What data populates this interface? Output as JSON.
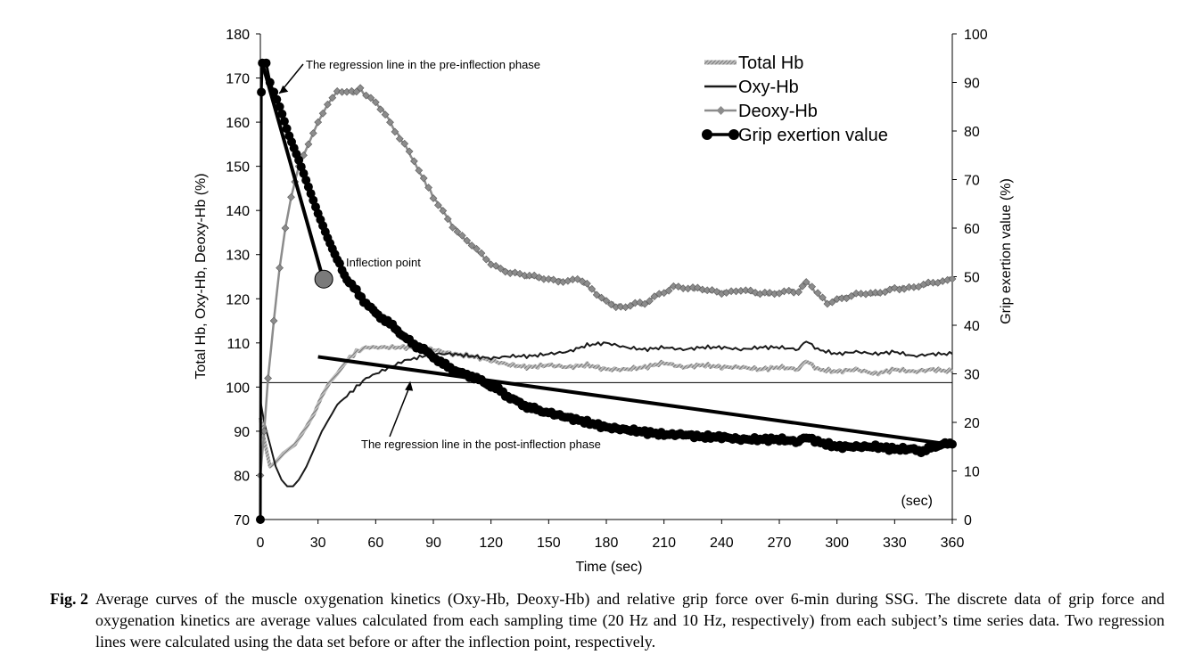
{
  "chart_data": {
    "type": "line",
    "xlabel": "Time (sec)",
    "xunit_note": "(sec)",
    "ylabel_left": "Total Hb, Oxy-Hb,  Deoxy-Hb (%)",
    "ylabel_right": "Grip exertion value (%)",
    "xlim": [
      0,
      360
    ],
    "ylim_left": [
      70,
      180
    ],
    "ylim_right": [
      0,
      100
    ],
    "xticks": [
      "0",
      "30",
      "60",
      "90",
      "120",
      "150",
      "180",
      "210",
      "240",
      "270",
      "300",
      "330",
      "360"
    ],
    "yticks_left": [
      "70",
      "80",
      "90",
      "100",
      "110",
      "120",
      "130",
      "140",
      "150",
      "160",
      "170",
      "180"
    ],
    "yticks_right": [
      "0",
      "10",
      "20",
      "30",
      "40",
      "50",
      "60",
      "70",
      "80",
      "90",
      "100"
    ],
    "reference_line_left": 101,
    "legend_position": "top-right",
    "legend": [
      "Total Hb",
      "Oxy-Hb",
      "Deoxy-Hb",
      "Grip exertion value"
    ],
    "series": [
      {
        "name": "Total Hb",
        "axis": "left",
        "color": "#8c8c8c",
        "points": [
          [
            0,
            93
          ],
          [
            2,
            88
          ],
          [
            5,
            82
          ],
          [
            8,
            83
          ],
          [
            12,
            85
          ],
          [
            18,
            87
          ],
          [
            24,
            91
          ],
          [
            28,
            94
          ],
          [
            32,
            98
          ],
          [
            36,
            101
          ],
          [
            40,
            103
          ],
          [
            45,
            106
          ],
          [
            50,
            108
          ],
          [
            55,
            109
          ],
          [
            60,
            109
          ],
          [
            70,
            109
          ],
          [
            80,
            109
          ],
          [
            90,
            108.5
          ],
          [
            100,
            107.5
          ],
          [
            110,
            107
          ],
          [
            120,
            106
          ],
          [
            130,
            105
          ],
          [
            140,
            104.5
          ],
          [
            150,
            105
          ],
          [
            160,
            104.5
          ],
          [
            170,
            105
          ],
          [
            180,
            104
          ],
          [
            190,
            104
          ],
          [
            200,
            104.5
          ],
          [
            210,
            105.5
          ],
          [
            220,
            104.5
          ],
          [
            230,
            105
          ],
          [
            240,
            104.5
          ],
          [
            250,
            104.5
          ],
          [
            260,
            104
          ],
          [
            270,
            104.5
          ],
          [
            280,
            104
          ],
          [
            284,
            106
          ],
          [
            290,
            104
          ],
          [
            300,
            103.5
          ],
          [
            310,
            104
          ],
          [
            320,
            103
          ],
          [
            330,
            104
          ],
          [
            340,
            103.5
          ],
          [
            350,
            104
          ],
          [
            360,
            103.5
          ]
        ]
      },
      {
        "name": "Oxy-Hb",
        "axis": "left",
        "color": "#1a1a1a",
        "points": [
          [
            0,
            97
          ],
          [
            2,
            92
          ],
          [
            5,
            87
          ],
          [
            8,
            82
          ],
          [
            11,
            79
          ],
          [
            14,
            77.5
          ],
          [
            17,
            77.5
          ],
          [
            20,
            79
          ],
          [
            24,
            82
          ],
          [
            28,
            86
          ],
          [
            32,
            90
          ],
          [
            36,
            93
          ],
          [
            40,
            96
          ],
          [
            45,
            98
          ],
          [
            50,
            100
          ],
          [
            55,
            102
          ],
          [
            60,
            103
          ],
          [
            65,
            104
          ],
          [
            70,
            105
          ],
          [
            75,
            106
          ],
          [
            80,
            106.5
          ],
          [
            90,
            107.5
          ],
          [
            100,
            107.5
          ],
          [
            110,
            107
          ],
          [
            120,
            106.5
          ],
          [
            130,
            107
          ],
          [
            140,
            107
          ],
          [
            150,
            107.5
          ],
          [
            160,
            108
          ],
          [
            170,
            109.5
          ],
          [
            180,
            110
          ],
          [
            190,
            109
          ],
          [
            200,
            108.5
          ],
          [
            210,
            109
          ],
          [
            220,
            108.5
          ],
          [
            230,
            109
          ],
          [
            240,
            109
          ],
          [
            250,
            108.5
          ],
          [
            260,
            109
          ],
          [
            270,
            109
          ],
          [
            280,
            108.5
          ],
          [
            284,
            110.5
          ],
          [
            290,
            108.5
          ],
          [
            300,
            107.5
          ],
          [
            310,
            108
          ],
          [
            320,
            107.5
          ],
          [
            330,
            108
          ],
          [
            340,
            107
          ],
          [
            350,
            107.5
          ],
          [
            360,
            107.5
          ]
        ]
      },
      {
        "name": "Deoxy-Hb",
        "axis": "left",
        "color": "#8c8c8c",
        "points": [
          [
            0,
            80
          ],
          [
            2,
            90
          ],
          [
            4,
            102
          ],
          [
            7,
            115
          ],
          [
            10,
            127
          ],
          [
            13,
            136
          ],
          [
            16,
            143
          ],
          [
            20,
            150
          ],
          [
            25,
            155
          ],
          [
            30,
            160
          ],
          [
            35,
            164
          ],
          [
            40,
            167
          ],
          [
            45,
            167
          ],
          [
            50,
            166.5
          ],
          [
            52,
            167.5
          ],
          [
            55,
            166
          ],
          [
            60,
            164.5
          ],
          [
            65,
            162
          ],
          [
            70,
            158
          ],
          [
            75,
            155
          ],
          [
            80,
            151
          ],
          [
            85,
            147
          ],
          [
            90,
            143
          ],
          [
            95,
            140
          ],
          [
            100,
            136.5
          ],
          [
            105,
            134
          ],
          [
            110,
            132
          ],
          [
            115,
            130
          ],
          [
            120,
            128
          ],
          [
            125,
            127
          ],
          [
            130,
            126
          ],
          [
            140,
            125
          ],
          [
            150,
            124.5
          ],
          [
            160,
            124
          ],
          [
            165,
            124.5
          ],
          [
            170,
            123
          ],
          [
            175,
            121
          ],
          [
            180,
            119.5
          ],
          [
            185,
            118.5
          ],
          [
            190,
            118
          ],
          [
            195,
            119
          ],
          [
            200,
            118.5
          ],
          [
            205,
            120.5
          ],
          [
            210,
            121.5
          ],
          [
            215,
            123
          ],
          [
            220,
            122.5
          ],
          [
            230,
            122
          ],
          [
            240,
            121.5
          ],
          [
            250,
            122
          ],
          [
            260,
            121
          ],
          [
            270,
            121.5
          ],
          [
            275,
            122
          ],
          [
            280,
            121.5
          ],
          [
            284,
            124
          ],
          [
            290,
            121
          ],
          [
            295,
            119
          ],
          [
            300,
            120
          ],
          [
            310,
            121
          ],
          [
            320,
            121
          ],
          [
            330,
            122.5
          ],
          [
            340,
            122.5
          ],
          [
            350,
            123.5
          ],
          [
            360,
            124.5
          ]
        ]
      },
      {
        "name": "Grip exertion value",
        "axis": "right",
        "color": "#000000",
        "points": [
          [
            0,
            0
          ],
          [
            0.5,
            88
          ],
          [
            1,
            94
          ],
          [
            3,
            94
          ],
          [
            5,
            90
          ],
          [
            7,
            88
          ],
          [
            10,
            85
          ],
          [
            15,
            79
          ],
          [
            20,
            74
          ],
          [
            25,
            68.5
          ],
          [
            30,
            63
          ],
          [
            35,
            58
          ],
          [
            40,
            53.5
          ],
          [
            45,
            49.5
          ],
          [
            50,
            47
          ],
          [
            55,
            44.5
          ],
          [
            60,
            42.5
          ],
          [
            65,
            41
          ],
          [
            70,
            39.5
          ],
          [
            75,
            37.5
          ],
          [
            80,
            36
          ],
          [
            85,
            35
          ],
          [
            90,
            33.5
          ],
          [
            95,
            32
          ],
          [
            100,
            31
          ],
          [
            105,
            30
          ],
          [
            110,
            29.5
          ],
          [
            115,
            28.5
          ],
          [
            120,
            27.5
          ],
          [
            125,
            26.5
          ],
          [
            130,
            25
          ],
          [
            135,
            24
          ],
          [
            140,
            23
          ],
          [
            145,
            22.5
          ],
          [
            150,
            22
          ],
          [
            160,
            21
          ],
          [
            170,
            20
          ],
          [
            180,
            19
          ],
          [
            190,
            18.5
          ],
          [
            200,
            18
          ],
          [
            210,
            17.5
          ],
          [
            220,
            17.5
          ],
          [
            230,
            17
          ],
          [
            240,
            17
          ],
          [
            250,
            16.5
          ],
          [
            260,
            16.5
          ],
          [
            270,
            16.5
          ],
          [
            280,
            16
          ],
          [
            284,
            17
          ],
          [
            290,
            16
          ],
          [
            300,
            15
          ],
          [
            310,
            15
          ],
          [
            320,
            15
          ],
          [
            330,
            14.5
          ],
          [
            340,
            14.5
          ],
          [
            345,
            14
          ],
          [
            350,
            15
          ],
          [
            355,
            15.5
          ],
          [
            360,
            15.5
          ]
        ]
      }
    ],
    "regression_lines": [
      {
        "name": "The regression line in the pre-inflection phase",
        "axis": "right",
        "points": [
          [
            1,
            94
          ],
          [
            33,
            49
          ]
        ]
      },
      {
        "name": "The regression line in the post-inflection phase",
        "axis": "right",
        "points": [
          [
            30,
            33.5
          ],
          [
            358,
            15.5
          ]
        ]
      }
    ],
    "inflection_point": {
      "label": "Inflection point",
      "x": 33,
      "y": 49.5
    },
    "annotations": [
      {
        "text": "The regression line in the pre-inflection phase",
        "points_to_x": 8,
        "points_to_y": 87
      },
      {
        "text": "Inflection point"
      },
      {
        "text": "The regression line in the post-inflection phase",
        "points_to_x": 78,
        "points_to_y": 28.5
      }
    ]
  },
  "caption": {
    "label": "Fig. 2",
    "text": "Average curves of the muscle oxygenation kinetics (Oxy-Hb, Deoxy-Hb) and relative grip force over 6-min during SSG. The discrete data of grip force and oxygenation kinetics are average values calculated from each sampling time (20 Hz and 10 Hz, respectively) from each subject’s time series data. Two regression lines were calculated using the data set before or after the inflection point, respectively."
  }
}
